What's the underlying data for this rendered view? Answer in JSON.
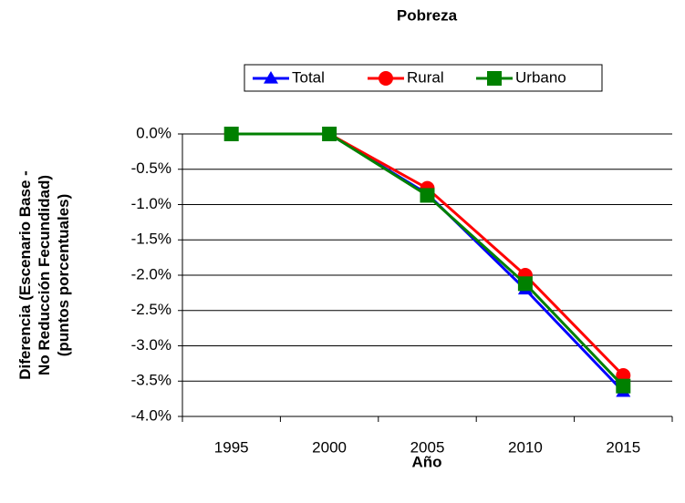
{
  "chart_data": {
    "type": "line",
    "title": "Pobreza",
    "x_label": "Año",
    "y_label": [
      "Diferencia (Escenario Base -",
      "No Reducción Fecundidad)",
      "(puntos porcentuales)"
    ],
    "categories": [
      "1995",
      "2000",
      "2005",
      "2010",
      "2015"
    ],
    "series": [
      {
        "name": "Total",
        "color": "#0000ff",
        "marker": "triangle",
        "values": [
          0,
          0,
          -0.85,
          -2.2,
          -3.65
        ]
      },
      {
        "name": "Rural",
        "color": "#ff0000",
        "marker": "circle",
        "values": [
          0,
          0,
          -0.77,
          -2.0,
          -3.42
        ]
      },
      {
        "name": "Urbano",
        "color": "#008000",
        "marker": "square",
        "values": [
          0,
          0,
          -0.87,
          -2.12,
          -3.57
        ]
      }
    ],
    "ylim": [
      -4,
      0
    ],
    "yticks": [
      {
        "value": 0,
        "label": "0.0%"
      },
      {
        "value": -0.5,
        "label": "-0.5%"
      },
      {
        "value": -1,
        "label": "-1.0%"
      },
      {
        "value": -1.5,
        "label": "-1.5%"
      },
      {
        "value": -2,
        "label": "-2.0%"
      },
      {
        "value": -2.5,
        "label": "-2.5%"
      },
      {
        "value": -3,
        "label": "-3.0%"
      },
      {
        "value": -3.5,
        "label": "-3.5%"
      },
      {
        "value": -4,
        "label": "-4.0%"
      }
    ],
    "grid": true,
    "legend": "top"
  }
}
